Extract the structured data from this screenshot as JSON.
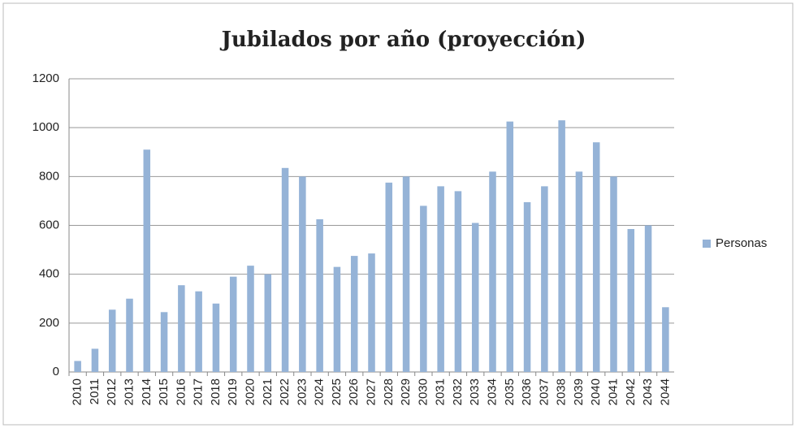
{
  "chart_data": {
    "type": "bar",
    "title": "Jubilados por año (proyección)",
    "categories": [
      "2010",
      "2011",
      "2012",
      "2013",
      "2014",
      "2015",
      "2016",
      "2017",
      "2018",
      "2019",
      "2020",
      "2021",
      "2022",
      "2023",
      "2024",
      "2025",
      "2026",
      "2027",
      "2028",
      "2029",
      "2030",
      "2031",
      "2032",
      "2033",
      "2034",
      "2035",
      "2036",
      "2037",
      "2038",
      "2039",
      "2040",
      "2041",
      "2042",
      "2043",
      "2044"
    ],
    "series": [
      {
        "name": "Personas",
        "color": "#95b3d7",
        "values": [
          45,
          95,
          255,
          300,
          910,
          245,
          355,
          330,
          280,
          390,
          435,
          400,
          835,
          800,
          625,
          430,
          475,
          485,
          775,
          800,
          680,
          760,
          740,
          610,
          820,
          1025,
          695,
          760,
          1030,
          820,
          940,
          800,
          585,
          600,
          265
        ]
      }
    ],
    "ylim": [
      0,
      1200
    ],
    "yticks": [
      0,
      200,
      400,
      600,
      800,
      1000,
      1200
    ],
    "grid": true,
    "legend": "right"
  }
}
